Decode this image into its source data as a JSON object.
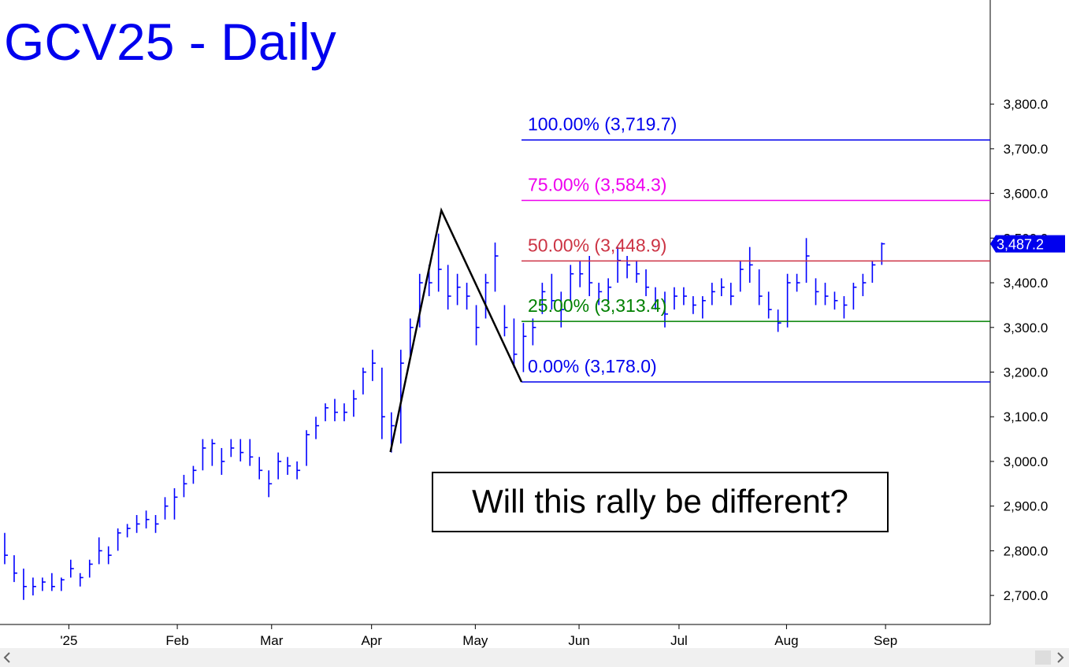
{
  "chart_data": {
    "type": "ohlc",
    "title": "GCV25 - Daily",
    "color": "#0000ff",
    "high": [
      2840,
      2790,
      2760,
      2740,
      2740,
      2750,
      2740,
      2780,
      2750,
      2780,
      2830,
      2810,
      2850,
      2860,
      2880,
      2890,
      2880,
      2920,
      2940,
      2970,
      2990,
      3050,
      3050,
      3030,
      3050,
      3050,
      3050,
      3010,
      2980,
      3020,
      3010,
      3000,
      3070,
      3100,
      3130,
      3140,
      3130,
      3160,
      3210,
      3250,
      3210,
      3110,
      3250,
      3320,
      3420,
      3440,
      3510,
      3440,
      3420,
      3400,
      3350,
      3420,
      3490,
      3350,
      3320,
      3310,
      3320,
      3400,
      3420,
      3380,
      3440,
      3450,
      3460,
      3400,
      3410,
      3480,
      3460,
      3450,
      3430,
      3390,
      3380,
      3390,
      3390,
      3370,
      3370,
      3400,
      3410,
      3400,
      3450,
      3480,
      3430,
      3380,
      3340,
      3420,
      3420,
      3500,
      3410,
      3400,
      3380,
      3370,
      3400,
      3420,
      3450,
      3490
    ],
    "low": [
      2770,
      2730,
      2690,
      2700,
      2710,
      2710,
      2710,
      2740,
      2720,
      2740,
      2770,
      2770,
      2800,
      2830,
      2840,
      2850,
      2840,
      2870,
      2870,
      2920,
      2950,
      2980,
      2990,
      2970,
      3010,
      3000,
      2990,
      2960,
      2920,
      2960,
      2970,
      2960,
      2990,
      3050,
      3090,
      3090,
      3090,
      3100,
      3150,
      3180,
      3050,
      3020,
      3040,
      3230,
      3300,
      3370,
      3380,
      3340,
      3350,
      3340,
      3260,
      3320,
      3380,
      3280,
      3210,
      3200,
      3260,
      3330,
      3340,
      3300,
      3360,
      3390,
      3370,
      3350,
      3360,
      3400,
      3410,
      3400,
      3370,
      3340,
      3300,
      3340,
      3350,
      3330,
      3320,
      3350,
      3370,
      3350,
      3380,
      3400,
      3350,
      3320,
      3290,
      3300,
      3380,
      3400,
      3350,
      3350,
      3340,
      3320,
      3340,
      3370,
      3400,
      3440
    ],
    "close": [
      2790,
      2750,
      2720,
      2720,
      2730,
      2720,
      2735,
      2760,
      2740,
      2770,
      2800,
      2790,
      2840,
      2850,
      2860,
      2870,
      2860,
      2900,
      2920,
      2950,
      2980,
      3030,
      3040,
      3000,
      3030,
      3020,
      3010,
      2980,
      2950,
      3000,
      2990,
      2980,
      3060,
      3080,
      3120,
      3110,
      3110,
      3140,
      3200,
      3220,
      3100,
      3080,
      3220,
      3300,
      3400,
      3400,
      3430,
      3370,
      3390,
      3370,
      3300,
      3400,
      3460,
      3300,
      3240,
      3280,
      3300,
      3380,
      3360,
      3340,
      3420,
      3420,
      3400,
      3380,
      3390,
      3450,
      3440,
      3420,
      3390,
      3360,
      3330,
      3370,
      3370,
      3350,
      3360,
      3380,
      3390,
      3370,
      3430,
      3440,
      3370,
      3340,
      3310,
      3400,
      3400,
      3460,
      3380,
      3370,
      3360,
      3350,
      3390,
      3400,
      3440,
      3487.2
    ],
    "xlim": [
      -0.5,
      104.5
    ],
    "xticks": [
      {
        "value": 6.8,
        "label": "'25"
      },
      {
        "value": 18.3,
        "label": "Feb"
      },
      {
        "value": 28.3,
        "label": "Mar"
      },
      {
        "value": 38.9,
        "label": "Apr"
      },
      {
        "value": 49.9,
        "label": "May"
      },
      {
        "value": 60.9,
        "label": "Jun"
      },
      {
        "value": 71.5,
        "label": "Jul"
      },
      {
        "value": 82.9,
        "label": "Aug"
      },
      {
        "value": 93.4,
        "label": "Sep"
      }
    ],
    "ylim": [
      2635,
      4033
    ],
    "yticks": [
      {
        "value": 2700,
        "label": "2,700.0"
      },
      {
        "value": 2800,
        "label": "2,800.0"
      },
      {
        "value": 2900,
        "label": "2,900.0"
      },
      {
        "value": 3000,
        "label": "3,000.0"
      },
      {
        "value": 3100,
        "label": "3,100.0"
      },
      {
        "value": 3200,
        "label": "3,200.0"
      },
      {
        "value": 3300,
        "label": "3,300.0"
      },
      {
        "value": 3400,
        "label": "3,400.0"
      },
      {
        "value": 3500,
        "label": "3,500.0"
      },
      {
        "value": 3600,
        "label": "3,600.0"
      },
      {
        "value": 3700,
        "label": "3,700.0"
      },
      {
        "value": 3800,
        "label": "3,800.0"
      }
    ],
    "levels": [
      {
        "label": "100.00% (3,719.7)",
        "value": 3719.7,
        "color": "#0000ee"
      },
      {
        "label": "75.00% (3,584.3)",
        "value": 3584.3,
        "color": "#ee00ee"
      },
      {
        "label": "50.00% (3,448.9)",
        "value": 3448.9,
        "color": "#cc3344"
      },
      {
        "label": "25.00% (3,313.4)",
        "value": 3313.4,
        "color": "#008000"
      },
      {
        "label": "0.00% (3,178.0)",
        "value": 3178.0,
        "color": "#0000ee"
      }
    ],
    "levels_start": 54.8,
    "pattern": {
      "x": [
        40.9,
        46.3,
        54.8
      ],
      "y": [
        3021,
        3562,
        3178
      ],
      "color": "#000000"
    },
    "last_price": {
      "value": 3487.2,
      "label": "3,487.2"
    },
    "annotation": "Will this rally be different?"
  }
}
